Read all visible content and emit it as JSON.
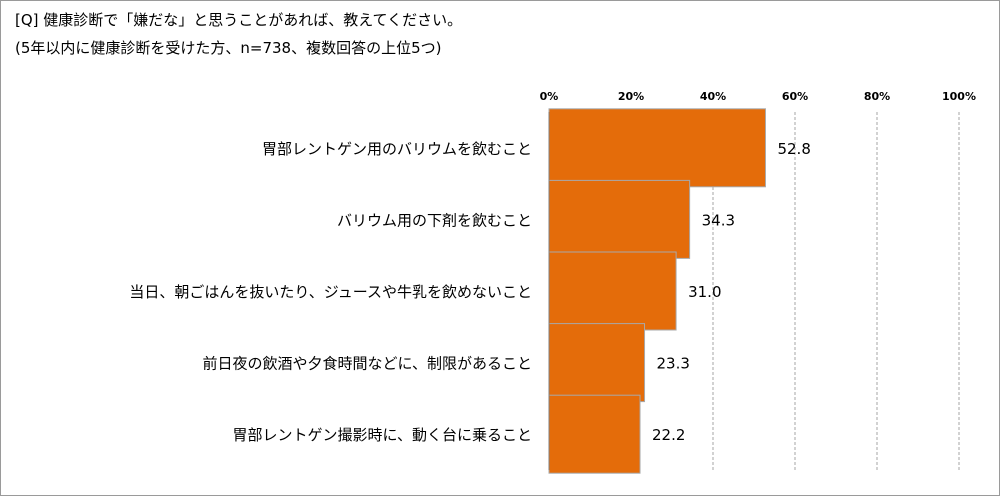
{
  "question": {
    "line1": "[Q]  健康診断で「嫌だな」と思うことがあれば、教えてください。",
    "line2": "(5年以内に健康診断を受けた方、n=738、複数回答の上位5つ)"
  },
  "chart_data": {
    "type": "bar",
    "orientation": "horizontal",
    "categories": [
      "胃部レントゲン用のバリウムを飲むこと",
      "バリウム用の下剤を飲むこと",
      "当日、朝ごはんを抜いたり、ジュースや牛乳を飲めないこと",
      "前日夜の飲酒や夕食時間などに、制限があること",
      "胃部レントゲン撮影時に、動く台に乗ること"
    ],
    "values": [
      52.8,
      34.3,
      31.0,
      23.3,
      22.2
    ],
    "value_labels": [
      "52.8",
      "34.3",
      "31.0",
      "23.3",
      "22.2"
    ],
    "xlim": [
      0,
      100
    ],
    "ticks": [
      0,
      20,
      40,
      60,
      80,
      100
    ],
    "tick_labels": [
      "0%",
      "20%",
      "40%",
      "60%",
      "80%",
      "100%"
    ],
    "grid": "vertical dashed",
    "bar_color": "#E46C0A",
    "bar_edge_color": "#A9A9A9"
  }
}
